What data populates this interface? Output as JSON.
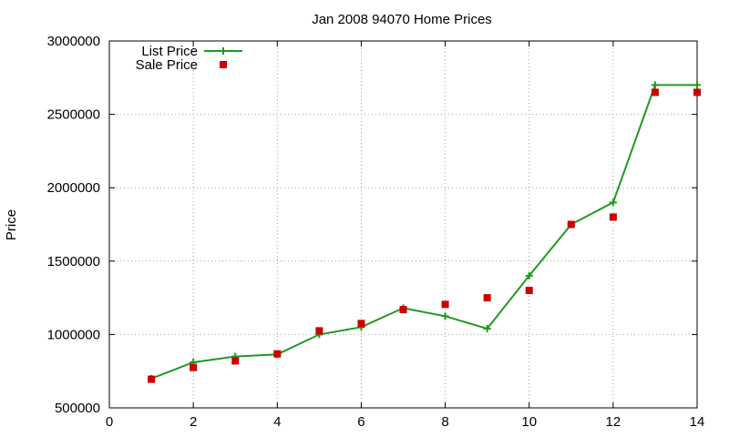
{
  "chart_data": {
    "type": "line",
    "title": "Jan 2008 94070 Home Prices",
    "xlabel": "",
    "ylabel": "Price",
    "xlim": [
      0,
      14
    ],
    "ylim": [
      500000,
      3000000
    ],
    "xticks": [
      0,
      2,
      4,
      6,
      8,
      10,
      12,
      14
    ],
    "yticks": [
      500000,
      1000000,
      1500000,
      2000000,
      2500000,
      3000000
    ],
    "grid": true,
    "legend_position": "top-left",
    "series": [
      {
        "name": "List Price",
        "style": "line-with-plus-markers",
        "color": "#1f9a1f",
        "x": [
          1,
          2,
          3,
          4,
          5,
          6,
          7,
          8,
          9,
          10,
          11,
          12,
          13,
          14
        ],
        "y": [
          700000,
          810000,
          850000,
          865000,
          1000000,
          1050000,
          1180000,
          1125000,
          1040000,
          1400000,
          1750000,
          1900000,
          2700000,
          2700000
        ]
      },
      {
        "name": "Sale Price",
        "style": "square-markers",
        "color": "#cc0000",
        "x": [
          1,
          2,
          3,
          4,
          5,
          6,
          7,
          8,
          9,
          10,
          11,
          12,
          13,
          14
        ],
        "y": [
          695000,
          775000,
          820000,
          868000,
          1025000,
          1075000,
          1170000,
          1205000,
          1250000,
          1300000,
          1750000,
          1800000,
          2650000,
          2650000
        ]
      }
    ]
  }
}
